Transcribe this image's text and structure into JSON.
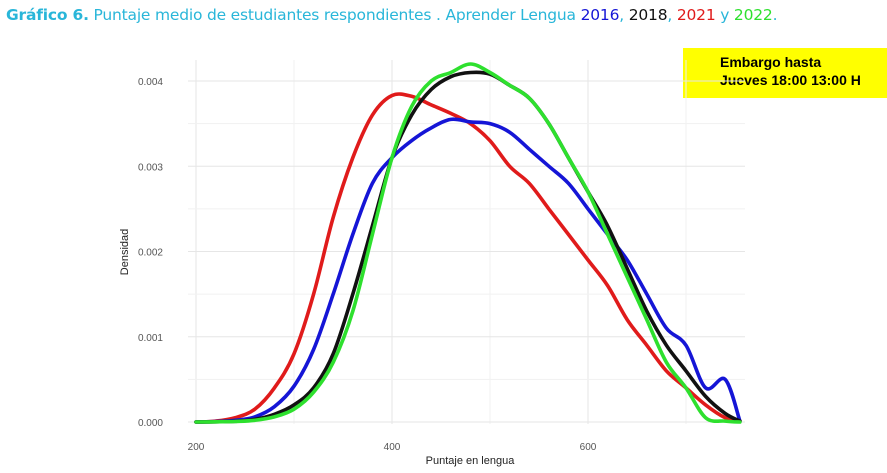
{
  "title": {
    "prefix": "Gráfico 6.",
    "text": " Puntaje medio de estudiantes respondientes . Aprender Lengua ",
    "years": [
      {
        "label": "2016",
        "color": "#1515d6"
      },
      {
        "label": ", ",
        "color": "#29b6d9"
      },
      {
        "label": "2018",
        "color": "#111111"
      },
      {
        "label": ", ",
        "color": "#29b6d9"
      },
      {
        "label": "2021",
        "color": "#e01b1b"
      },
      {
        "label": " y ",
        "color": "#29b6d9"
      },
      {
        "label": "2022",
        "color": "#2ee02e"
      },
      {
        "label": ".",
        "color": "#29b6d9"
      }
    ]
  },
  "embargo": {
    "line1": "Embargo hasta",
    "line2": "Jueves 18:00 13:00 H",
    "background": "#ffff00"
  },
  "chart_data": {
    "type": "line",
    "title": "",
    "xlabel": "Puntaje en lengua",
    "ylabel": "Densidad",
    "xlim": [
      200,
      760
    ],
    "ylim": [
      0,
      0.0042
    ],
    "xticks": [
      {
        "value": 200,
        "label": "200"
      },
      {
        "value": 400,
        "label": "400"
      },
      {
        "value": 600,
        "label": "600"
      }
    ],
    "yticks": [
      {
        "value": 0,
        "label": "0.000"
      },
      {
        "value": 0.001,
        "label": "0.001"
      },
      {
        "value": 0.002,
        "label": "0.002"
      },
      {
        "value": 0.003,
        "label": "0.003"
      },
      {
        "value": 0.004,
        "label": "0.004"
      }
    ],
    "grid": true,
    "legend": "none (years colored in title)",
    "series": [
      {
        "name": "2021",
        "color": "#e01b1b",
        "x": [
          200,
          220,
          240,
          260,
          280,
          300,
          320,
          340,
          360,
          380,
          400,
          420,
          440,
          460,
          480,
          500,
          520,
          540,
          560,
          580,
          600,
          620,
          640,
          660,
          680,
          700,
          720,
          740,
          755
        ],
        "y": [
          0,
          1e-05,
          5e-05,
          0.00015,
          0.0004,
          0.0008,
          0.0015,
          0.0024,
          0.0031,
          0.0036,
          0.00383,
          0.00382,
          0.00372,
          0.00362,
          0.0035,
          0.0033,
          0.003,
          0.0028,
          0.0025,
          0.0022,
          0.0019,
          0.0016,
          0.0012,
          0.0009,
          0.0006,
          0.0004,
          0.0002,
          5e-05,
          1e-05
        ]
      },
      {
        "name": "2016",
        "color": "#1515d6",
        "x": [
          200,
          220,
          240,
          260,
          280,
          300,
          320,
          340,
          360,
          380,
          400,
          420,
          440,
          460,
          480,
          500,
          520,
          540,
          560,
          580,
          600,
          620,
          640,
          660,
          680,
          700,
          720,
          740,
          755
        ],
        "y": [
          0,
          5e-06,
          2e-05,
          6e-05,
          0.00018,
          0.00042,
          0.00085,
          0.0015,
          0.0022,
          0.0028,
          0.0031,
          0.0033,
          0.00345,
          0.00355,
          0.00352,
          0.0035,
          0.0034,
          0.0032,
          0.003,
          0.0028,
          0.0025,
          0.0022,
          0.0019,
          0.0015,
          0.0011,
          0.0009,
          0.0004,
          0.0005,
          1e-05
        ]
      },
      {
        "name": "2018",
        "color": "#111111",
        "x": [
          200,
          220,
          240,
          260,
          280,
          300,
          320,
          340,
          360,
          380,
          400,
          420,
          440,
          460,
          480,
          500,
          520,
          540,
          560,
          580,
          600,
          620,
          640,
          660,
          680,
          700,
          720,
          740,
          755
        ],
        "y": [
          0,
          2e-06,
          8e-06,
          3e-05,
          9e-05,
          0.0002,
          0.0004,
          0.0008,
          0.0015,
          0.0023,
          0.0031,
          0.0036,
          0.0039,
          0.00405,
          0.0041,
          0.00408,
          0.00395,
          0.0038,
          0.0035,
          0.0031,
          0.0027,
          0.0023,
          0.0018,
          0.0013,
          0.0009,
          0.0006,
          0.0003,
          0.0001,
          1e-05
        ]
      },
      {
        "name": "2022",
        "color": "#2ee02e",
        "x": [
          200,
          220,
          240,
          260,
          280,
          300,
          320,
          340,
          360,
          380,
          400,
          420,
          440,
          460,
          480,
          500,
          520,
          540,
          560,
          580,
          600,
          620,
          640,
          660,
          680,
          700,
          720,
          740,
          755
        ],
        "y": [
          0,
          2e-06,
          6e-06,
          2e-05,
          6e-05,
          0.00015,
          0.00035,
          0.0007,
          0.0013,
          0.0022,
          0.0031,
          0.0037,
          0.004,
          0.0041,
          0.0042,
          0.0041,
          0.00395,
          0.0038,
          0.0035,
          0.0031,
          0.0027,
          0.0022,
          0.0017,
          0.0012,
          0.0007,
          0.0004,
          5e-05,
          1e-05,
          0
        ]
      }
    ]
  }
}
